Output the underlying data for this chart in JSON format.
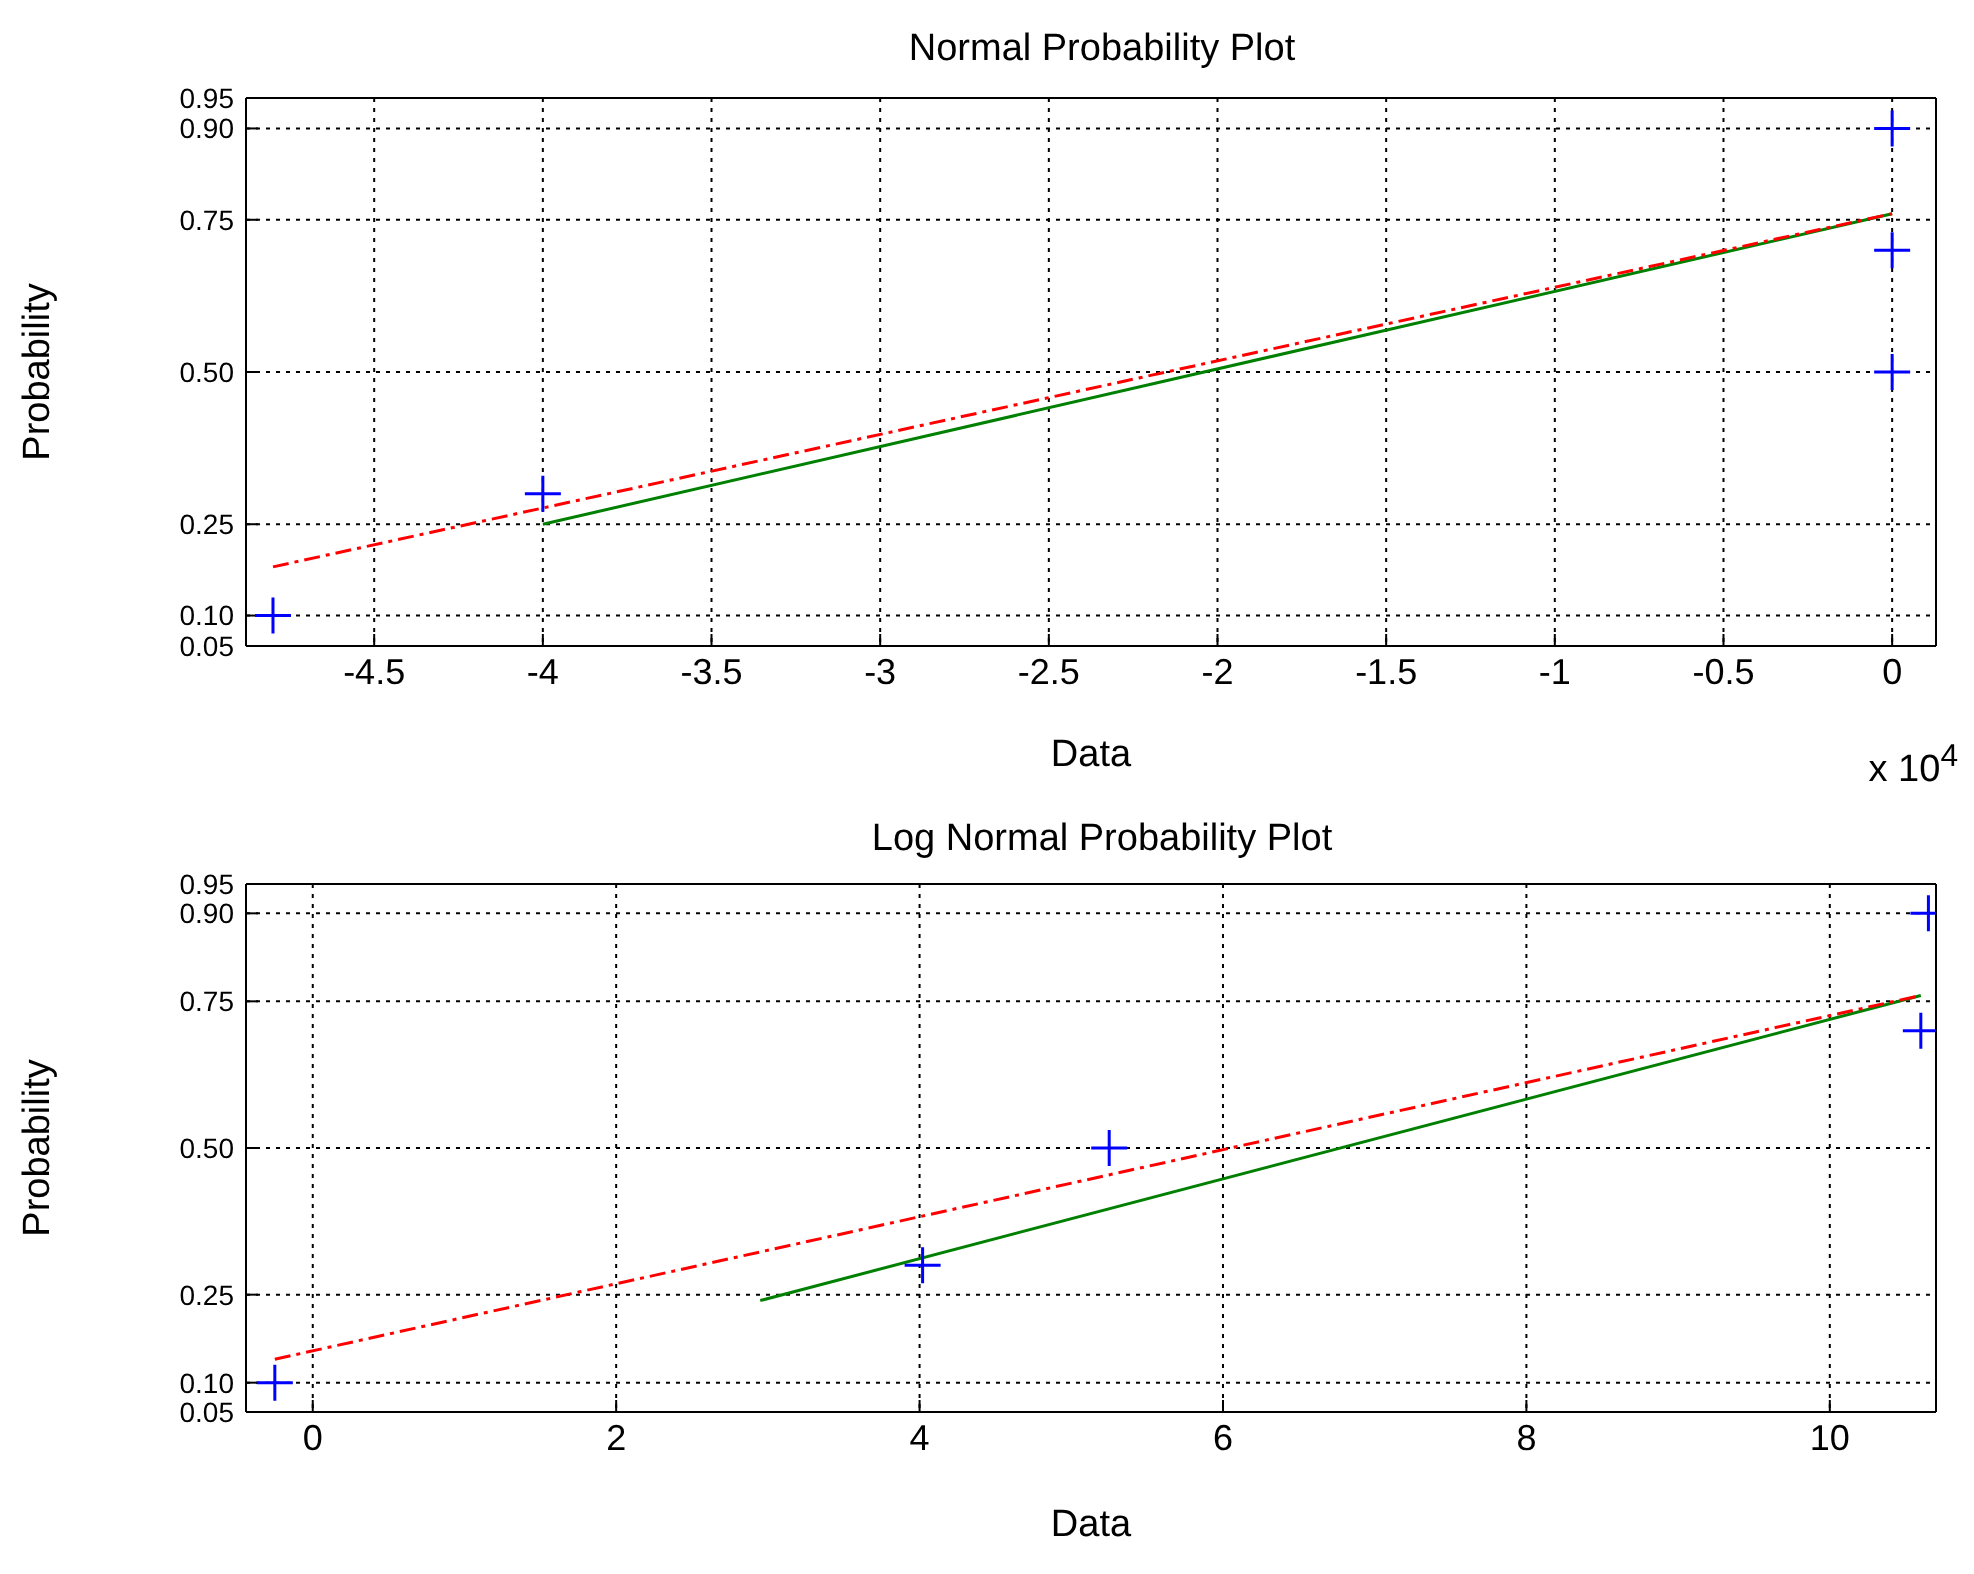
{
  "chart_data": [
    {
      "type": "scatter",
      "title": "Normal Probability Plot",
      "xlabel": "Data",
      "ylabel": "Probability",
      "annotations": [
        "x 10$^{4}$"
      ],
      "xlim": [
        -4.88,
        0.13
      ],
      "xticks": [
        -4.5,
        -4,
        -3.5,
        -3,
        -2.5,
        -2,
        -1.5,
        -1,
        -0.5,
        0
      ],
      "ylim": [
        0.05,
        0.95
      ],
      "yticks": [
        0.05,
        {
          "value": 0.1,
          "label": "0.10"
        },
        0.25,
        {
          "value": 0.5,
          "label": "0.50"
        },
        0.75,
        {
          "value": 0.9,
          "label": "0.90"
        },
        0.95
      ],
      "grid": true,
      "legend": false,
      "series": [
        {
          "color": "#0000ff",
          "marker": "cross",
          "x": [
            -4.8,
            -4.0,
            0,
            0,
            0
          ],
          "values": [
            0.1,
            0.3,
            0.5,
            0.7,
            0.9
          ]
        },
        {
          "type": "line",
          "color": "#008000",
          "line_style": "solid",
          "marker": "none",
          "x": [
            -4.0,
            0
          ],
          "values": [
            0.25,
            0.76
          ]
        },
        {
          "type": "line",
          "color": "#ff0000",
          "line_style": "dashed",
          "marker": "none",
          "x": [
            -4.8,
            0
          ],
          "values": [
            0.18,
            0.76
          ]
        }
      ]
    },
    {
      "type": "scatter",
      "title": "Log Normal Probability Plot",
      "xlabel": "Data",
      "ylabel": "Probability",
      "xlim": [
        -0.44,
        10.7
      ],
      "xticks": [
        0,
        2,
        4,
        6,
        8,
        10
      ],
      "ylim": [
        0.05,
        0.95
      ],
      "yticks": [
        0.05,
        {
          "value": 0.1,
          "label": "0.10"
        },
        0.25,
        {
          "value": 0.5,
          "label": "0.50"
        },
        0.75,
        {
          "value": 0.9,
          "label": "0.90"
        },
        0.95
      ],
      "grid": true,
      "legend": false,
      "series": [
        {
          "color": "#0000ff",
          "marker": "cross",
          "x": [
            -0.25,
            4.02,
            5.25,
            10.6,
            10.65
          ],
          "values": [
            0.1,
            0.3,
            0.5,
            0.7,
            0.9
          ]
        },
        {
          "type": "line",
          "color": "#008000",
          "line_style": "solid",
          "marker": "none",
          "x": [
            2.95,
            10.6
          ],
          "values": [
            0.24,
            0.76
          ]
        },
        {
          "type": "line",
          "color": "#ff0000",
          "line_style": "dashed",
          "marker": "none",
          "x": [
            -0.25,
            10.6
          ],
          "values": [
            0.14,
            0.76
          ]
        }
      ]
    }
  ]
}
